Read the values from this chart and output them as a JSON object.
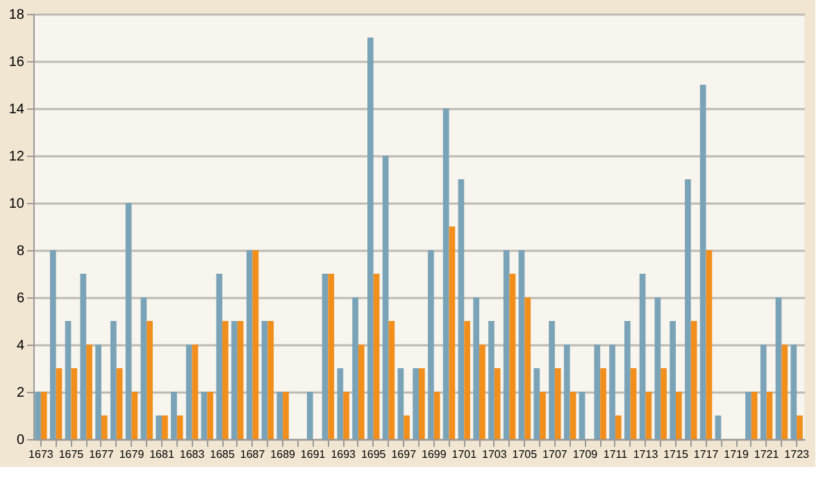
{
  "chart_data": {
    "type": "bar",
    "categories": [
      "1673",
      null,
      "1675",
      null,
      "1677",
      null,
      "1679",
      null,
      "1681",
      null,
      "1683",
      null,
      "1685",
      null,
      "1687",
      null,
      "1689",
      null,
      "1691",
      null,
      "1693",
      null,
      "1695",
      null,
      "1697",
      null,
      "1699",
      null,
      "1701",
      null,
      "1703",
      null,
      "1705",
      null,
      "1707",
      null,
      "1709",
      null,
      "1711",
      null,
      "1713",
      null,
      "1715",
      null,
      "1717",
      null,
      "1719",
      null,
      "1721",
      null,
      "1723"
    ],
    "series": [
      {
        "color": "#7ba3b8",
        "values": [
          2,
          8,
          5,
          7,
          4,
          5,
          10,
          6,
          1,
          2,
          4,
          2,
          7,
          5,
          8,
          5,
          2,
          0,
          2,
          7,
          3,
          6,
          17,
          12,
          3,
          3,
          8,
          14,
          11,
          6,
          5,
          8,
          8,
          3,
          5,
          4,
          2,
          4,
          4,
          5,
          7,
          6,
          5,
          11,
          15,
          1,
          0,
          2,
          4,
          6,
          4
        ]
      },
      {
        "color": "#f28e1c",
        "values": [
          2,
          3,
          3,
          4,
          1,
          3,
          2,
          5,
          1,
          1,
          4,
          2,
          5,
          5,
          8,
          5,
          2,
          0,
          0,
          7,
          2,
          4,
          7,
          5,
          1,
          3,
          2,
          9,
          5,
          4,
          3,
          7,
          6,
          2,
          3,
          2,
          0,
          3,
          1,
          3,
          2,
          3,
          2,
          5,
          8,
          0,
          0,
          2,
          2,
          4,
          1
        ]
      }
    ],
    "ylim": [
      0,
      18
    ],
    "yticks": [
      0,
      2,
      4,
      6,
      8,
      10,
      12,
      14,
      16,
      18
    ],
    "grid": "y",
    "legend": false
  }
}
